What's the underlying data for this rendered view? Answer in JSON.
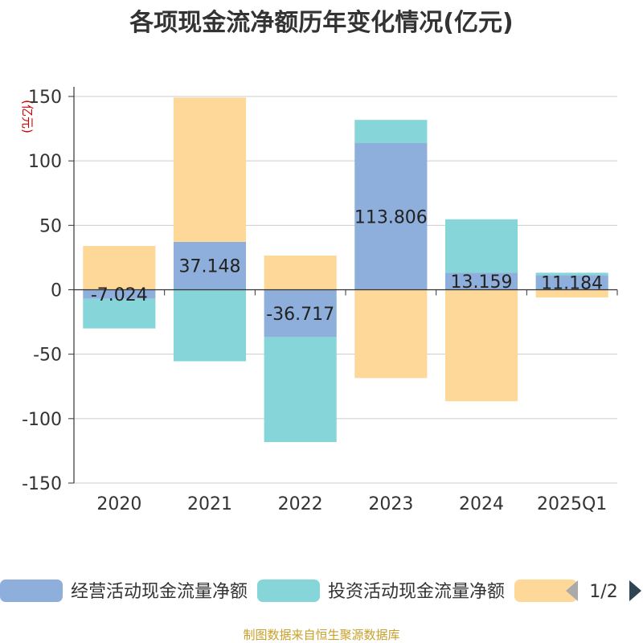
{
  "chart_data": {
    "type": "bar",
    "stacked": true,
    "title": "各项现金流净额历年变化情况(亿元)",
    "unit_label": "(亿元)",
    "categories": [
      "2020",
      "2021",
      "2022",
      "2023",
      "2024",
      "2025Q1"
    ],
    "ylim": [
      -150,
      150
    ],
    "yticks": [
      150,
      100,
      50,
      0,
      -50,
      -100,
      -150
    ],
    "grid": true,
    "legend_position": "bottom",
    "series": [
      {
        "name": "经营活动现金流量净额",
        "color": "#8eaedb",
        "values": [
          -7.024,
          37.148,
          -36.717,
          113.806,
          13.159,
          11.184
        ],
        "show_labels": true
      },
      {
        "name": "投资活动现金流量净额",
        "color": "#86d5d9",
        "values": [
          -23,
          -55.5,
          -81.5,
          18,
          41.5,
          2
        ],
        "show_labels": false
      },
      {
        "name": "",
        "color": "#fed898",
        "values": [
          34,
          112,
          26.5,
          -68.5,
          -86.5,
          -6
        ],
        "show_labels": false
      }
    ]
  },
  "legend": {
    "page_indicator": "1/2"
  },
  "source": "制图数据来自恒生聚源数据库",
  "colors": {
    "axis": "#333333",
    "grid": "#cccccc",
    "pager_disabled": "#aaaaaa",
    "pager_active": "#2f4554"
  }
}
